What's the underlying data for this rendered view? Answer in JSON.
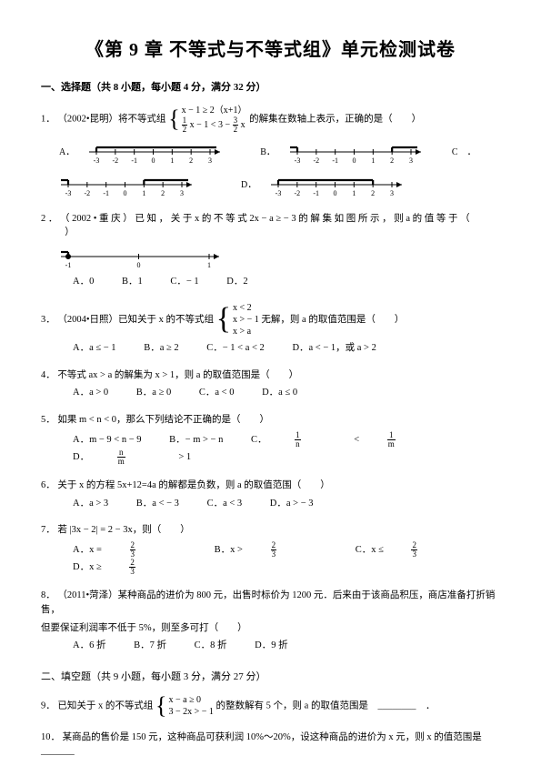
{
  "title": "《第 9 章  不等式与不等式组》单元检测试卷",
  "section1": {
    "header": "一、选择题（共 8 小题，每小题 4 分，满分 32 分）",
    "q1": {
      "num": "1．",
      "prefix": "（2002•昆明）将不等式组",
      "sys_line1": "x − 1 ≥ 2（x+1）",
      "sys_line2_a": "x − 1 < 3 −",
      "sys_line2_b": "x",
      "suffix": "的解集在数轴上表示，正确的是（　　）",
      "labelA": "A．",
      "labelB": "B．",
      "labelC": "C　．",
      "labelD": "D．"
    },
    "q2": {
      "num": "2 ．",
      "text": "（ 2002 • 重 庆 ） 已 知 ， 关 于 x 的 不 等 式 2x − a ≥ − 3 的 解 集 如 图 所 示 ， 则 a 的 值 等 于 （ 　 　 ）",
      "optA": "A．0",
      "optB": "B．1",
      "optC": "C．− 1",
      "optD": "D．2"
    },
    "q3": {
      "num": "3．",
      "prefix": "（2004•日照）已知关于 x 的不等式组",
      "sys_l1": "x < 2",
      "sys_l2": "x > − 1",
      "sys_l3": "x > a",
      "suffix": "无解，则 a 的取值范围是（　　）",
      "optA": "A．a ≤ − 1",
      "optB": "B．a ≥ 2",
      "optC": "C．− 1 < a < 2",
      "optD": "D．a < − 1，或 a > 2"
    },
    "q4": {
      "num": "4．",
      "text": "不等式 ax > a 的解集为 x > 1，则 a 的取值范围是（　　）",
      "optA": "A．a > 0",
      "optB": "B．a ≥ 0",
      "optC": "C．a < 0",
      "optD": "D．a ≤ 0"
    },
    "q5": {
      "num": "5．",
      "text": "如果 m < n < 0，那么下列结论不正确的是（　　）",
      "optA_pre": "A．m − 9 < n − 9",
      "optB": "B．− m > − n",
      "optC_pre": "C．",
      "optC_mid": " < ",
      "optD_pre": "D．",
      "optD_suf": " > 1"
    },
    "q6": {
      "num": "6．",
      "text": "关于 x 的方程 5x+12=4a 的解都是负数，则 a 的取值范围（　　）",
      "optA": "A．a > 3",
      "optB": "B．a < − 3",
      "optC": "C．a < 3",
      "optD": "D．a > − 3"
    },
    "q7": {
      "num": "7．",
      "text": "若 |3x − 2| = 2 − 3x，则（　　）",
      "optA_pre": "A．x =",
      "optB_pre": "B．x >",
      "optC_pre": "C．x ≤",
      "optD_pre": "D．x ≥"
    },
    "q8": {
      "num": "8．",
      "line1": "（2011•菏泽）某种商品的进价为 800 元，出售时标价为 1200 元．后来由于该商品积压，商店准备打折销售，",
      "line2": "但要保证利润率不低于 5%，则至多可打（　　）",
      "optA": "A．6 折",
      "optB": "B．7 折",
      "optC": "C．8 折",
      "optD": "D．9 折"
    }
  },
  "section2": {
    "header": "二、填空题（共 9 小题，每小题 3 分，满分 27 分）",
    "q9": {
      "num": "9．",
      "prefix": "已知关于 x 的不等式组",
      "sys_l1": "x − a ≥ 0",
      "sys_l2": "3 − 2x > − 1",
      "suffix": "的整数解有 5 个，则 a 的取值范围是　________　．"
    },
    "q10": {
      "num": "10．",
      "text": "某商品的售价是 150 元，这种商品可获利润 10%～20%，设这种商品的进价为 x 元，则 x 的值范围是　_______"
    }
  },
  "numline": {
    "ticks": [
      "-3",
      "-2",
      "-1",
      "0",
      "1",
      "2",
      "3"
    ],
    "ticks2": [
      "-1",
      "0",
      "1"
    ],
    "stroke": "#000000",
    "axis_width": 1,
    "bold_width": 2.2
  }
}
